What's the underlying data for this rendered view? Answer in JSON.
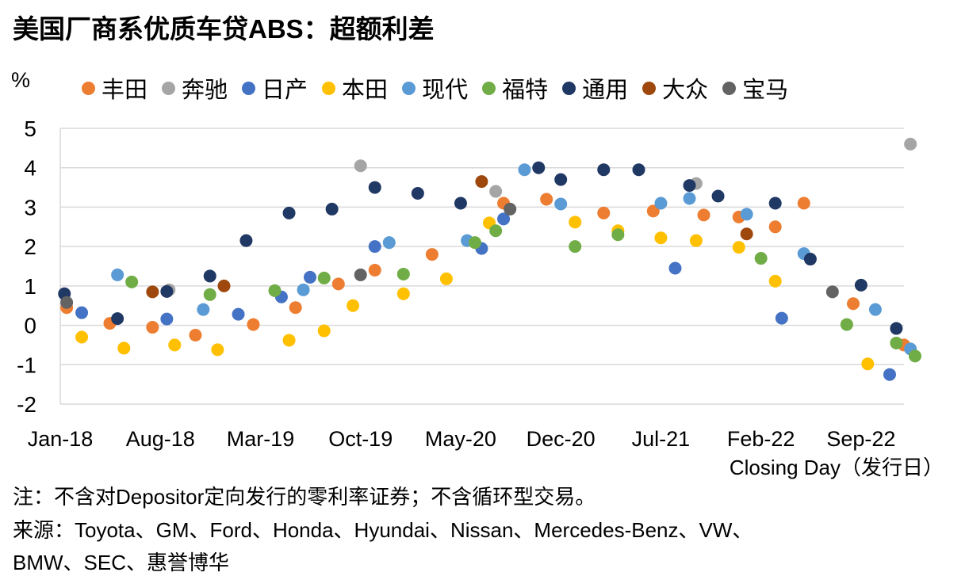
{
  "chart_data": {
    "type": "scatter",
    "title": "美国厂商系优质车贷ABS：超额利差",
    "ylabel": "%",
    "xlabel": "Closing Day（发行日）",
    "ylim": [
      -2,
      5
    ],
    "yticks": [
      "5",
      "4",
      "3",
      "2",
      "1",
      "0",
      "-1",
      "-2"
    ],
    "xlim": [
      "2018-01",
      "2022-12"
    ],
    "xticks": [
      {
        "label": "Jan-18",
        "x": "2018-01"
      },
      {
        "label": "Aug-18",
        "x": "2018-08"
      },
      {
        "label": "Mar-19",
        "x": "2019-03"
      },
      {
        "label": "Oct-19",
        "x": "2019-10"
      },
      {
        "label": "May-20",
        "x": "2020-05"
      },
      {
        "label": "Dec-20",
        "x": "2020-12"
      },
      {
        "label": "Jul-21",
        "x": "2021-07"
      },
      {
        "label": "Feb-22",
        "x": "2022-02"
      },
      {
        "label": "Sep-22",
        "x": "2022-09"
      }
    ],
    "legend_position": "top",
    "grid": "horizontal",
    "series": [
      {
        "name": "丰田",
        "color": "#ED7D31",
        "points": [
          {
            "x": "2018-01-15",
            "y": 0.45
          },
          {
            "x": "2018-04-15",
            "y": 0.05
          },
          {
            "x": "2018-07-15",
            "y": -0.05
          },
          {
            "x": "2018-10-15",
            "y": -0.25
          },
          {
            "x": "2019-02-15",
            "y": 0.02
          },
          {
            "x": "2019-05-15",
            "y": 0.45
          },
          {
            "x": "2019-08-15",
            "y": 1.05
          },
          {
            "x": "2019-11-01",
            "y": 1.4
          },
          {
            "x": "2020-03-01",
            "y": 1.8
          },
          {
            "x": "2020-08-01",
            "y": 3.1
          },
          {
            "x": "2020-11-01",
            "y": 3.2
          },
          {
            "x": "2021-03-01",
            "y": 2.85
          },
          {
            "x": "2021-06-15",
            "y": 2.9
          },
          {
            "x": "2021-10-01",
            "y": 2.8
          },
          {
            "x": "2021-12-15",
            "y": 2.75
          },
          {
            "x": "2022-03-01",
            "y": 2.5
          },
          {
            "x": "2022-05-01",
            "y": 3.1
          },
          {
            "x": "2022-08-15",
            "y": 0.55
          },
          {
            "x": "2022-12-01",
            "y": -0.5
          }
        ]
      },
      {
        "name": "奔驰",
        "color": "#A5A5A5",
        "points": [
          {
            "x": "2018-08-20",
            "y": 0.9
          },
          {
            "x": "2019-10-01",
            "y": 4.05
          },
          {
            "x": "2020-07-15",
            "y": 3.4
          },
          {
            "x": "2021-09-15",
            "y": 3.6
          },
          {
            "x": "2022-12-15",
            "y": 4.6
          }
        ]
      },
      {
        "name": "日产",
        "color": "#4472C4",
        "points": [
          {
            "x": "2018-02-15",
            "y": 0.32
          },
          {
            "x": "2018-08-15",
            "y": 0.16
          },
          {
            "x": "2019-01-15",
            "y": 0.28
          },
          {
            "x": "2019-04-15",
            "y": 0.72
          },
          {
            "x": "2019-06-15",
            "y": 1.22
          },
          {
            "x": "2019-11-01",
            "y": 2.0
          },
          {
            "x": "2020-06-15",
            "y": 1.95
          },
          {
            "x": "2020-08-01",
            "y": 2.7
          },
          {
            "x": "2021-08-01",
            "y": 1.45
          },
          {
            "x": "2022-03-15",
            "y": 0.18
          },
          {
            "x": "2022-11-01",
            "y": -1.25
          }
        ]
      },
      {
        "name": "本田",
        "color": "#FFC000",
        "points": [
          {
            "x": "2018-02-15",
            "y": -0.3
          },
          {
            "x": "2018-05-15",
            "y": -0.58
          },
          {
            "x": "2018-09-01",
            "y": -0.5
          },
          {
            "x": "2018-12-01",
            "y": -0.62
          },
          {
            "x": "2019-05-01",
            "y": -0.38
          },
          {
            "x": "2019-07-15",
            "y": -0.14
          },
          {
            "x": "2019-09-15",
            "y": 0.5
          },
          {
            "x": "2020-01-01",
            "y": 0.8
          },
          {
            "x": "2020-04-01",
            "y": 1.18
          },
          {
            "x": "2020-07-01",
            "y": 2.6
          },
          {
            "x": "2021-01-01",
            "y": 2.62
          },
          {
            "x": "2021-04-01",
            "y": 2.4
          },
          {
            "x": "2021-07-01",
            "y": 2.22
          },
          {
            "x": "2021-09-15",
            "y": 2.15
          },
          {
            "x": "2021-12-15",
            "y": 1.98
          },
          {
            "x": "2022-03-01",
            "y": 1.12
          },
          {
            "x": "2022-09-15",
            "y": -0.98
          }
        ]
      },
      {
        "name": "现代",
        "color": "#5B9BD5",
        "points": [
          {
            "x": "2018-05-01",
            "y": 1.28
          },
          {
            "x": "2018-11-01",
            "y": 0.4
          },
          {
            "x": "2019-06-01",
            "y": 0.9
          },
          {
            "x": "2019-12-01",
            "y": 2.1
          },
          {
            "x": "2020-05-15",
            "y": 2.15
          },
          {
            "x": "2020-09-15",
            "y": 3.95
          },
          {
            "x": "2020-12-01",
            "y": 3.08
          },
          {
            "x": "2021-07-01",
            "y": 3.1
          },
          {
            "x": "2021-09-01",
            "y": 3.22
          },
          {
            "x": "2022-01-01",
            "y": 2.82
          },
          {
            "x": "2022-05-01",
            "y": 1.82
          },
          {
            "x": "2022-10-01",
            "y": 0.4
          },
          {
            "x": "2022-12-15",
            "y": -0.6
          }
        ]
      },
      {
        "name": "福特",
        "color": "#70AD47",
        "points": [
          {
            "x": "2018-06-01",
            "y": 1.1
          },
          {
            "x": "2018-11-15",
            "y": 0.78
          },
          {
            "x": "2019-04-01",
            "y": 0.88
          },
          {
            "x": "2019-07-15",
            "y": 1.2
          },
          {
            "x": "2020-01-01",
            "y": 1.3
          },
          {
            "x": "2020-06-01",
            "y": 2.1
          },
          {
            "x": "2020-07-15",
            "y": 2.4
          },
          {
            "x": "2021-01-01",
            "y": 2.0
          },
          {
            "x": "2021-04-01",
            "y": 2.3
          },
          {
            "x": "2022-02-01",
            "y": 1.7
          },
          {
            "x": "2022-08-01",
            "y": 0.02
          },
          {
            "x": "2022-11-15",
            "y": -0.45
          },
          {
            "x": "2022-12-25",
            "y": -0.78
          }
        ]
      },
      {
        "name": "通用",
        "color": "#203864",
        "points": [
          {
            "x": "2018-01-10",
            "y": 0.8
          },
          {
            "x": "2018-05-01",
            "y": 0.17
          },
          {
            "x": "2018-08-15",
            "y": 0.86
          },
          {
            "x": "2018-11-15",
            "y": 1.25
          },
          {
            "x": "2019-02-01",
            "y": 2.15
          },
          {
            "x": "2019-05-01",
            "y": 2.85
          },
          {
            "x": "2019-08-01",
            "y": 2.95
          },
          {
            "x": "2019-11-01",
            "y": 3.5
          },
          {
            "x": "2020-02-01",
            "y": 3.35
          },
          {
            "x": "2020-05-01",
            "y": 3.1
          },
          {
            "x": "2020-10-15",
            "y": 4.0
          },
          {
            "x": "2020-12-01",
            "y": 3.7
          },
          {
            "x": "2021-03-01",
            "y": 3.95
          },
          {
            "x": "2021-05-15",
            "y": 3.95
          },
          {
            "x": "2021-09-01",
            "y": 3.55
          },
          {
            "x": "2021-11-01",
            "y": 3.28
          },
          {
            "x": "2022-03-01",
            "y": 3.1
          },
          {
            "x": "2022-05-15",
            "y": 1.68
          },
          {
            "x": "2022-09-01",
            "y": 1.02
          },
          {
            "x": "2022-11-15",
            "y": -0.08
          }
        ]
      },
      {
        "name": "大众",
        "color": "#9E480E",
        "points": [
          {
            "x": "2018-07-15",
            "y": 0.85
          },
          {
            "x": "2018-12-15",
            "y": 1.0
          },
          {
            "x": "2020-06-15",
            "y": 3.65
          },
          {
            "x": "2022-01-01",
            "y": 2.32
          }
        ]
      },
      {
        "name": "宝马",
        "color": "#636363",
        "points": [
          {
            "x": "2018-01-15",
            "y": 0.58
          },
          {
            "x": "2019-10-01",
            "y": 1.28
          },
          {
            "x": "2020-08-15",
            "y": 2.95
          },
          {
            "x": "2022-07-01",
            "y": 0.85
          }
        ]
      }
    ]
  },
  "note": "注：不含对Depositor定向发行的零利率证券；不含循环型交易。",
  "source_line1": "来源：Toyota、GM、Ford、Honda、Hyundai、Nissan、Mercedes-Benz、VW、",
  "source_line2": "BMW、SEC、惠誉博华"
}
